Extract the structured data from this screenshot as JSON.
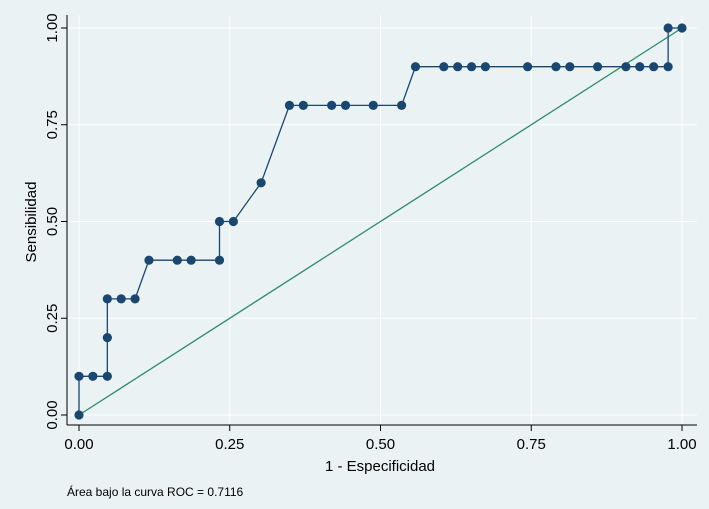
{
  "chart_data": {
    "type": "line",
    "xlabel": "1 - Especificidad",
    "ylabel": "Sensibilidad",
    "xlim": [
      0,
      1
    ],
    "ylim": [
      0,
      1
    ],
    "x_ticks": [
      0,
      0.25,
      0.5,
      0.75,
      1
    ],
    "x_tick_labels": [
      "0.00",
      "0.25",
      "0.50",
      "0.75",
      "1.00"
    ],
    "y_ticks": [
      0,
      0.25,
      0.5,
      0.75,
      1
    ],
    "y_tick_labels": [
      "0.00",
      "0.25",
      "0.50",
      "0.75",
      "1.00"
    ],
    "grid": true,
    "note": "Área bajo la curva ROC = 0.7116",
    "colors": {
      "roc": "#1a476f",
      "reference": "#2e8b6e",
      "grid": "#ffffff",
      "plot_background": "#eaf2f3"
    },
    "series": [
      {
        "x": [
          0,
          0,
          0.023,
          0.047,
          0.047,
          0.047,
          0.07,
          0.093,
          0.116,
          0.163,
          0.186,
          0.233,
          0.233,
          0.256,
          0.302,
          0.349,
          0.372,
          0.419,
          0.442,
          0.488,
          0.535,
          0.558,
          0.605,
          0.628,
          0.651,
          0.674,
          0.744,
          0.791,
          0.814,
          0.86,
          0.907,
          0.93,
          0.953,
          0.977,
          0.977,
          1
        ],
        "y": [
          0,
          0.1,
          0.1,
          0.1,
          0.2,
          0.3,
          0.3,
          0.3,
          0.4,
          0.4,
          0.4,
          0.4,
          0.5,
          0.5,
          0.6,
          0.8,
          0.8,
          0.8,
          0.8,
          0.8,
          0.8,
          0.9,
          0.9,
          0.9,
          0.9,
          0.9,
          0.9,
          0.9,
          0.9,
          0.9,
          0.9,
          0.9,
          0.9,
          0.9,
          1,
          1
        ]
      },
      {
        "x": [
          0,
          1
        ],
        "y": [
          0,
          1
        ]
      }
    ]
  }
}
